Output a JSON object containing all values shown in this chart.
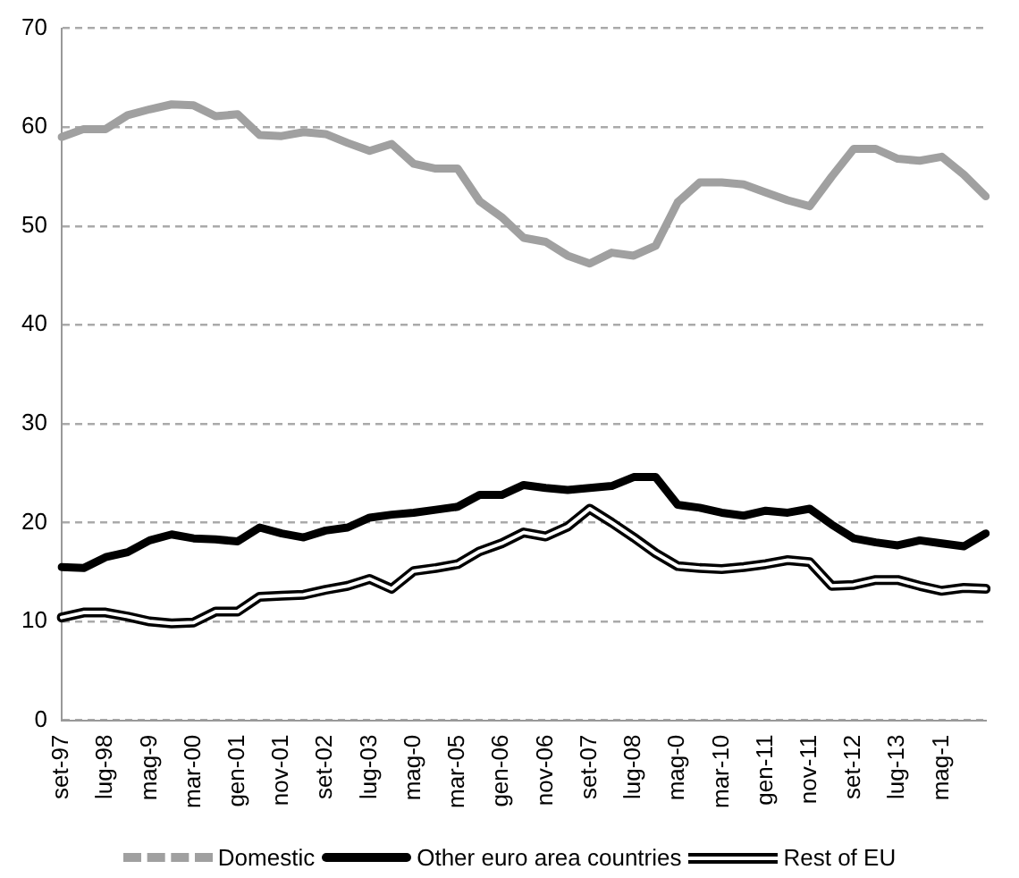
{
  "chart_data": {
    "type": "line",
    "categories": [
      "set-97",
      null,
      "lug-98",
      null,
      "mag-9",
      null,
      "mar-00",
      null,
      "gen-01",
      null,
      "nov-01",
      null,
      "set-02",
      null,
      "lug-03",
      null,
      "mag-0",
      null,
      "mar-05",
      null,
      "gen-06",
      null,
      "nov-06",
      null,
      "set-07",
      null,
      "lug-08",
      null,
      "mag-0",
      null,
      "mar-10",
      null,
      "gen-11",
      null,
      "nov-11",
      null,
      "set-12",
      null,
      "lug-13",
      null,
      "mag-1",
      null,
      null
    ],
    "series": [
      {
        "name": "Domestic",
        "color": "#a0a0a0",
        "values": [
          59.0,
          59.8,
          59.8,
          61.2,
          61.8,
          62.3,
          62.2,
          61.1,
          61.3,
          59.2,
          59.1,
          59.5,
          59.3,
          58.4,
          57.6,
          58.3,
          56.3,
          55.8,
          55.8,
          52.5,
          50.9,
          48.8,
          48.4,
          47.0,
          46.2,
          47.3,
          47.0,
          48.0,
          52.4,
          54.4,
          54.4,
          54.2,
          53.4,
          52.6,
          52.0,
          55.0,
          57.8,
          57.8,
          56.8,
          56.6,
          57.0,
          55.2,
          53.0
        ]
      },
      {
        "name": "Other euro area countries",
        "color": "#000000",
        "values": [
          15.5,
          15.4,
          16.5,
          17.0,
          18.2,
          18.8,
          18.4,
          18.3,
          18.1,
          19.5,
          18.9,
          18.5,
          19.2,
          19.5,
          20.5,
          20.8,
          21.0,
          21.3,
          21.6,
          22.8,
          22.8,
          23.8,
          23.5,
          23.3,
          23.5,
          23.7,
          24.6,
          24.6,
          21.8,
          21.5,
          21.0,
          20.7,
          21.2,
          21.0,
          21.4,
          19.8,
          18.4,
          18.0,
          17.7,
          18.2,
          17.9,
          17.6,
          18.9
        ]
      },
      {
        "name": "Rest of EU",
        "color": "#000000",
        "values": [
          10.4,
          10.9,
          10.9,
          10.5,
          10.0,
          9.8,
          9.9,
          11.0,
          11.0,
          12.5,
          12.6,
          12.7,
          13.2,
          13.6,
          14.3,
          13.3,
          15.1,
          15.4,
          15.8,
          17.1,
          17.9,
          19.0,
          18.6,
          19.6,
          21.4,
          20.0,
          18.5,
          16.9,
          15.6,
          15.4,
          15.3,
          15.5,
          15.8,
          16.2,
          16.0,
          13.6,
          13.7,
          14.2,
          14.2,
          13.6,
          13.1,
          13.4,
          13.3
        ]
      }
    ],
    "ylim": [
      0,
      70
    ],
    "yticks": [
      0,
      10,
      20,
      30,
      40,
      50,
      60,
      70
    ],
    "grid": "y",
    "legend": "bottom",
    "marker": "none"
  }
}
